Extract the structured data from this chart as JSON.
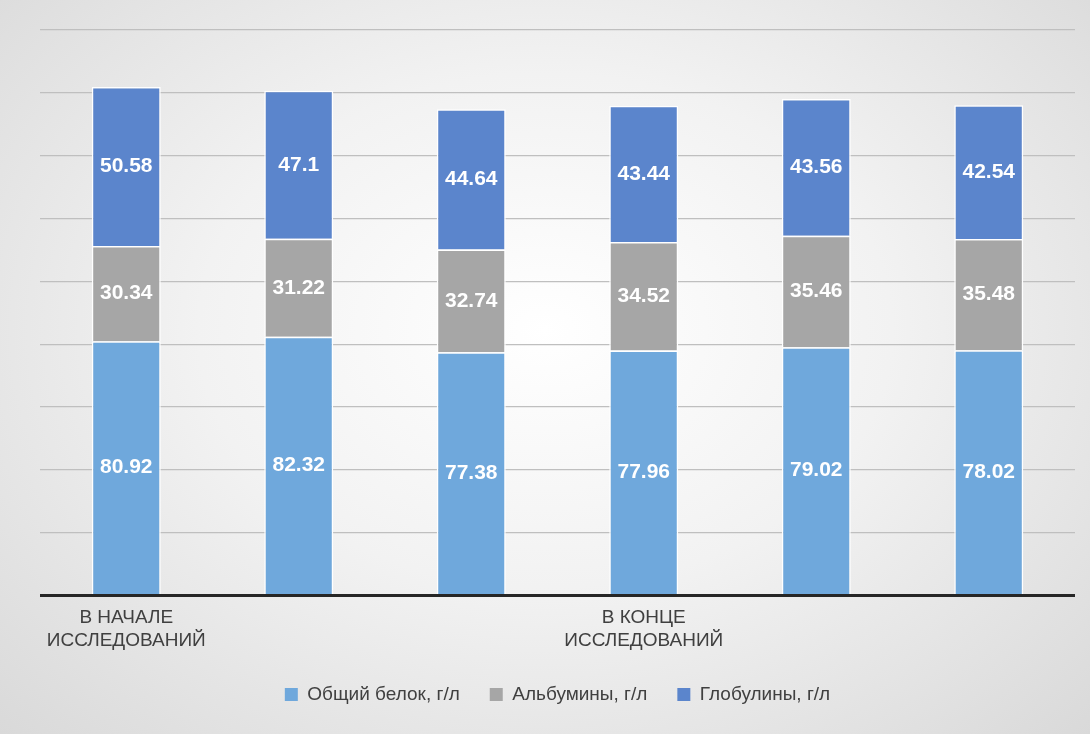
{
  "chart_data": {
    "type": "bar",
    "stacked": true,
    "categories": [
      "В НАЧАЛЕ ИССЛЕДОВАНИЙ",
      null,
      null,
      "В КОНЦЕ ИССЛЕДОВАНИЙ",
      null,
      null
    ],
    "series": [
      {
        "name": "Общий белок, г/л",
        "color": "#6fa8dc",
        "values": [
          80.92,
          82.32,
          77.38,
          77.96,
          79.02,
          78.02
        ]
      },
      {
        "name": "Альбумины, г/л",
        "color": "#a6a6a6",
        "values": [
          30.34,
          31.22,
          32.74,
          34.52,
          35.46,
          35.48
        ]
      },
      {
        "name": "Глобулины, г/л",
        "color": "#5b85cc",
        "values": [
          50.58,
          47.1,
          44.64,
          43.44,
          43.56,
          42.54
        ]
      }
    ],
    "ylim": [
      0,
      180
    ],
    "yticks": [
      {
        "value": 0,
        "label": null
      },
      {
        "value": 20,
        "label": null
      },
      {
        "value": 40,
        "label": null
      },
      {
        "value": 60,
        "label": null
      },
      {
        "value": 80,
        "label": null
      },
      {
        "value": 100,
        "label": null
      },
      {
        "value": 120,
        "label": null
      },
      {
        "value": 140,
        "label": null
      },
      {
        "value": 160,
        "label": null
      },
      {
        "value": 180,
        "label": null
      }
    ],
    "tick_labels": "x",
    "grid": "y",
    "legend": "bottom",
    "data_labels": true
  }
}
